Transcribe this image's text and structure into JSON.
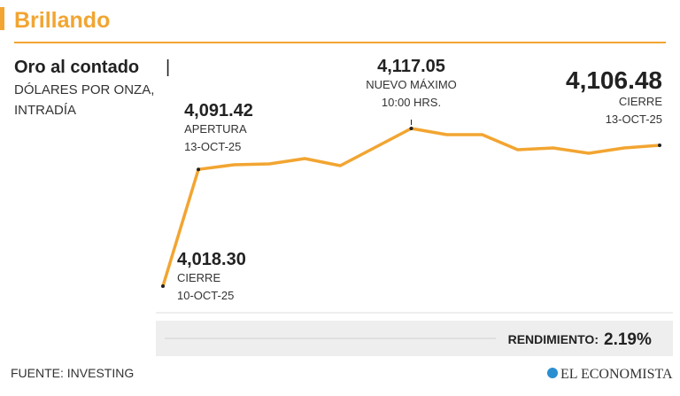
{
  "header": "Brillando",
  "chart_data": {
    "type": "line",
    "title": "Oro al contado",
    "subtitle_lines": [
      "DÓLARES POR ONZA,",
      "INTRADÍA"
    ],
    "values": [
      4018.3,
      4091.42,
      4094.3,
      4094.86,
      4098.19,
      4093.75,
      4105.4,
      4117.05,
      4113.17,
      4113.17,
      4103.73,
      4104.84,
      4101.52,
      4104.84,
      4106.48
    ],
    "value_labels": [
      "4,018.30",
      "4,091.42",
      null,
      null,
      null,
      null,
      null,
      "4,117.05",
      null,
      null,
      null,
      null,
      null,
      null,
      "4,106.48"
    ],
    "notes": [
      [
        "CIERRE",
        "10-OCT-25"
      ],
      [
        "APERTURA",
        "13-OCT-25"
      ],
      null,
      null,
      null,
      null,
      null,
      [
        "NUEVO MÁXIMO",
        "10:00 HRS."
      ],
      null,
      null,
      null,
      null,
      null,
      null,
      [
        "CIERRE",
        "13-OCT-25"
      ]
    ],
    "color": "#f2a531",
    "performance_label": "RENDIMIENTO:",
    "performance": "2.19%"
  },
  "source": "FUENTE: INVESTING",
  "brand": "EL ECONOMISTA"
}
